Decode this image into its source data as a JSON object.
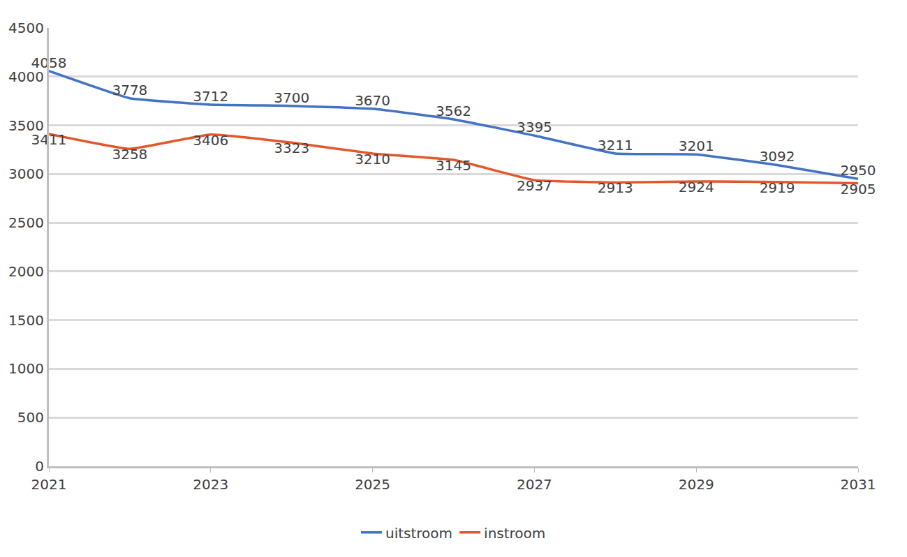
{
  "chart_data": {
    "type": "line",
    "x": [
      2021,
      2022,
      2023,
      2024,
      2025,
      2026,
      2027,
      2028,
      2029,
      2030,
      2031
    ],
    "series": [
      {
        "name": "uitstroom",
        "color": "#4472c4",
        "values": [
          4058,
          3778,
          3712,
          3700,
          3670,
          3562,
          3395,
          3211,
          3201,
          3092,
          2950
        ]
      },
      {
        "name": "instroom",
        "color": "#e2582a",
        "values": [
          3411,
          3258,
          3406,
          3323,
          3210,
          3145,
          2937,
          2913,
          2924,
          2919,
          2905
        ]
      }
    ],
    "xlim": [
      2021,
      2031
    ],
    "xticks": [
      2021,
      2023,
      2025,
      2027,
      2029,
      2031
    ],
    "ylim": [
      0,
      4500
    ],
    "yticks": [
      0,
      500,
      1000,
      1500,
      2000,
      2500,
      3000,
      3500,
      4000,
      4500
    ],
    "grid": true,
    "legend": "bottom",
    "data_labels": true
  }
}
